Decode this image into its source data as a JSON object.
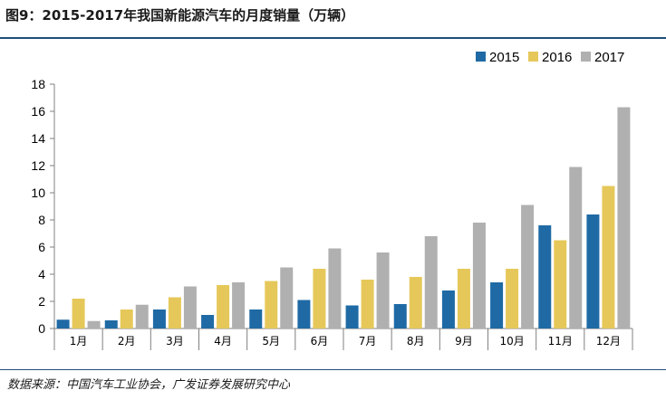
{
  "header": {
    "title": "图9：2015-2017年我国新能源汽车的月度销量（万辆）"
  },
  "footer": {
    "source": "数据来源：中国汽车工业协会，广发证券发展研究中心"
  },
  "chart_data": {
    "type": "bar",
    "title": "图9：2015-2017年我国新能源汽车的月度销量（万辆）",
    "xlabel": "",
    "ylabel": "",
    "ylim": [
      0,
      18
    ],
    "yticks": [
      0,
      2,
      4,
      6,
      8,
      10,
      12,
      14,
      16,
      18
    ],
    "grid": false,
    "legend_position": "top-right",
    "categories": [
      "1月",
      "2月",
      "3月",
      "4月",
      "5月",
      "6月",
      "7月",
      "8月",
      "9月",
      "10月",
      "11月",
      "12月"
    ],
    "series": [
      {
        "name": "2015",
        "color": "#1f6aa5",
        "values": [
          0.65,
          0.6,
          1.4,
          1.0,
          1.4,
          2.1,
          1.7,
          1.8,
          2.8,
          3.4,
          7.6,
          8.4
        ]
      },
      {
        "name": "2016",
        "color": "#e6c85a",
        "values": [
          2.2,
          1.4,
          2.3,
          3.2,
          3.5,
          4.4,
          3.6,
          3.8,
          4.4,
          4.4,
          6.5,
          10.5
        ]
      },
      {
        "name": "2017",
        "color": "#b0b0b0",
        "values": [
          0.55,
          1.75,
          3.1,
          3.4,
          4.5,
          5.9,
          5.6,
          6.8,
          7.8,
          9.1,
          11.9,
          16.3
        ]
      }
    ]
  }
}
